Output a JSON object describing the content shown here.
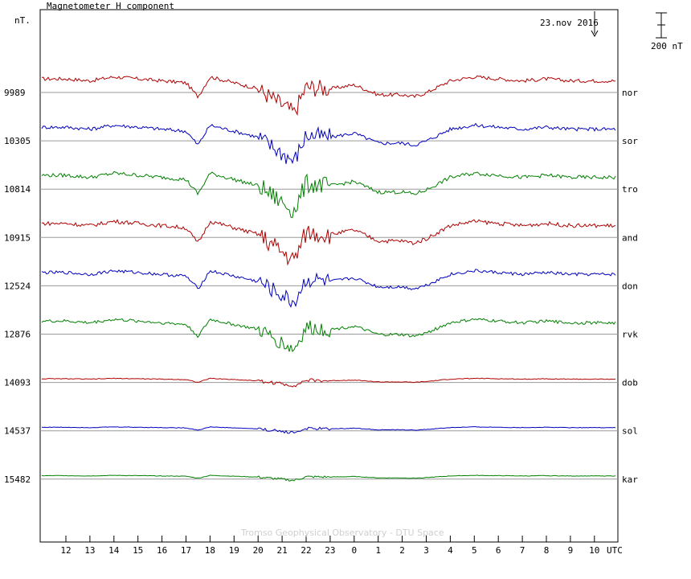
{
  "chart_data": {
    "type": "line",
    "title": "Magnetometer H component",
    "ylabel": "nT.",
    "date_label": "23.nov 2016",
    "scale_bar_label": "200 nT",
    "scale_bar_nT": 200,
    "watermark": "Tromso Geophysical Observatory - DTU Space",
    "x_unit_label": "UTC",
    "x_ticks": [
      "12",
      "13",
      "14",
      "15",
      "16",
      "17",
      "18",
      "19",
      "20",
      "21",
      "22",
      "23",
      "0",
      "1",
      "2",
      "3",
      "4",
      "5",
      "6",
      "7",
      "8",
      "9",
      "10"
    ],
    "x_range_hours_utc": [
      "11:00 22.nov 2016",
      "11:00 23.nov 2016"
    ],
    "station_baselines": [
      {
        "station": "nor",
        "baseline": "9989",
        "color": "#b00000"
      },
      {
        "station": "sor",
        "baseline": "10305",
        "color": "#0000c0"
      },
      {
        "station": "tro",
        "baseline": "10814",
        "color": "#008000"
      },
      {
        "station": "and",
        "baseline": "10915",
        "color": "#b00000"
      },
      {
        "station": "don",
        "baseline": "12524",
        "color": "#0000c0"
      },
      {
        "station": "rvk",
        "baseline": "12876",
        "color": "#008000"
      },
      {
        "station": "dob",
        "baseline": "14093",
        "color": "#b00000"
      },
      {
        "station": "sol",
        "baseline": "14537",
        "color": "#0000c0"
      },
      {
        "station": "kar",
        "baseline": "15482",
        "color": "#008000"
      }
    ],
    "series_amp": [
      1.0,
      1.0,
      1.05,
      1.1,
      0.9,
      0.85,
      0.2,
      0.16,
      0.14
    ],
    "series_profile_hours": [
      12,
      13,
      14,
      15,
      16,
      17,
      17.5,
      18,
      19,
      20,
      21,
      21.5,
      22,
      23,
      0,
      1,
      2,
      2.5,
      3,
      4,
      5,
      6,
      7,
      8,
      9,
      10
    ],
    "series_profile_nT": [
      20,
      10,
      30,
      20,
      10,
      0,
      -70,
      30,
      0,
      -30,
      -110,
      -150,
      -20,
      -30,
      -10,
      -60,
      -60,
      -70,
      -50,
      10,
      30,
      20,
      10,
      20,
      10,
      10
    ]
  }
}
